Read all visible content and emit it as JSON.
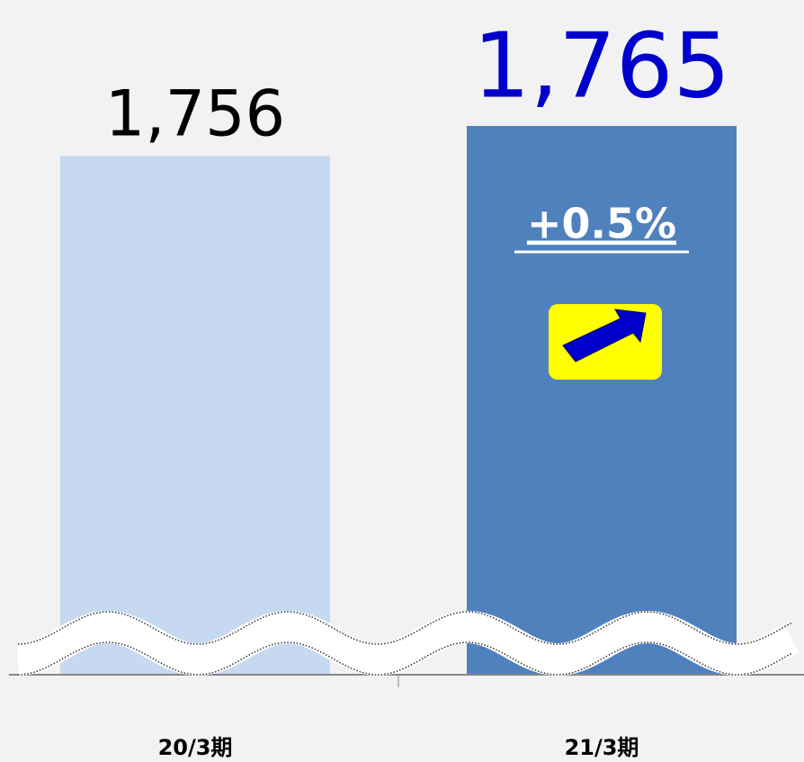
{
  "chart_data": {
    "type": "bar",
    "categories": [
      "20/3期",
      "21/3期"
    ],
    "values": [
      1756,
      1765
    ],
    "value_labels": [
      "1,756",
      "1,765"
    ],
    "colors": [
      "#c6d9f0",
      "#4f81bd"
    ],
    "value_label_colors": [
      "#000000",
      "#0000cc"
    ],
    "annotation": "+0.5%",
    "ylim": [
      1600,
      1770
    ],
    "axis_break": true
  }
}
